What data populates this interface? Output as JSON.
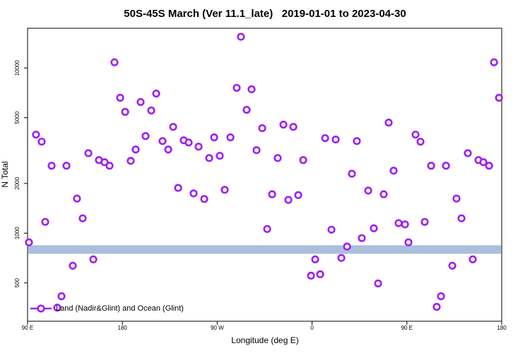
{
  "chart_data": {
    "type": "scatter",
    "title": "50S-45S March (Ver 11.1_late)   2019-01-01 to 2023-04-30",
    "x_label": "Longitude (deg E)",
    "y_label": "N Total",
    "log_y": true,
    "legend": "bottom-left",
    "xlim": [
      90,
      540
    ],
    "xticks": [
      {
        "value": 90,
        "label": "90 E"
      },
      180,
      {
        "value": 270,
        "label": "90 W"
      },
      {
        "value": 360,
        "label": "0"
      },
      {
        "value": 450,
        "label": "90 E"
      },
      {
        "value": 540,
        "label": "180"
      }
    ],
    "ylim": [
      293,
      17400
    ],
    "yticks": [
      500,
      1000,
      2000,
      5000,
      10000
    ],
    "band": {
      "range": [
        750,
        845
      ],
      "color": "#a9bfdc"
    },
    "series": [
      {
        "name": "Land (Nadir&Glint) and Ocean (Glint)",
        "color": "#a020f0",
        "x": [
          91.3,
          98.0,
          103.4,
          106.8,
          112.8,
          118.2,
          122.2,
          126.9,
          132.9,
          136.9,
          142.3,
          147.7,
          152.4,
          157.7,
          163.1,
          167.8,
          172.5,
          177.9,
          182.6,
          187.9,
          192.6,
          197.3,
          202.0,
          207.4,
          212.1,
          218.1,
          223.5,
          228.2,
          232.9,
          238.2,
          242.9,
          247.6,
          252.3,
          257.7,
          262.4,
          267.1,
          272.4,
          277.1,
          282.5,
          288.5,
          292.5,
          297.9,
          302.6,
          307.3,
          312.7,
          317.4,
          322.1,
          327.4,
          332.8,
          337.5,
          342.2,
          346.9,
          351.6,
          359.0,
          363.0,
          367.7,
          372.4,
          378.4,
          382.4,
          387.8,
          393.2,
          397.8,
          402.5,
          407.2,
          413.3,
          418.6,
          422.7,
          428.0,
          432.7,
          437.4,
          442.1,
          448.2,
          451.5,
          458.2,
          462.9,
          466.9,
          473.0,
          478.3,
          482.4,
          487.1,
          493.1,
          497.1,
          501.8,
          507.8,
          512.5,
          517.9,
          522.6,
          528.0,
          532.7,
          537.4
        ],
        "values": [
          880,
          3950,
          3580,
          1170,
          2560,
          354,
          415,
          2560,
          635,
          1620,
          1230,
          3050,
          694,
          2770,
          2690,
          2560,
          10820,
          6600,
          5420,
          2740,
          3210,
          6220,
          3870,
          5530,
          7000,
          3610,
          3210,
          4400,
          1880,
          3650,
          3540,
          1740,
          3340,
          1610,
          2850,
          3800,
          2940,
          1830,
          3800,
          7580,
          15450,
          5580,
          7430,
          3180,
          4320,
          1060,
          1720,
          2850,
          4540,
          1590,
          4400,
          1700,
          2770,
          553,
          694,
          564,
          3760,
          1050,
          3690,
          708,
          830,
          2290,
          3610,
          933,
          1810,
          1070,
          496,
          1720,
          4670,
          2390,
          1150,
          1130,
          880,
          3950,
          3580,
          1170,
          2560,
          358,
          415,
          2560,
          635,
          1620,
          1230,
          3050,
          694,
          2770,
          2690,
          2560,
          10820,
          6600
        ]
      }
    ]
  }
}
